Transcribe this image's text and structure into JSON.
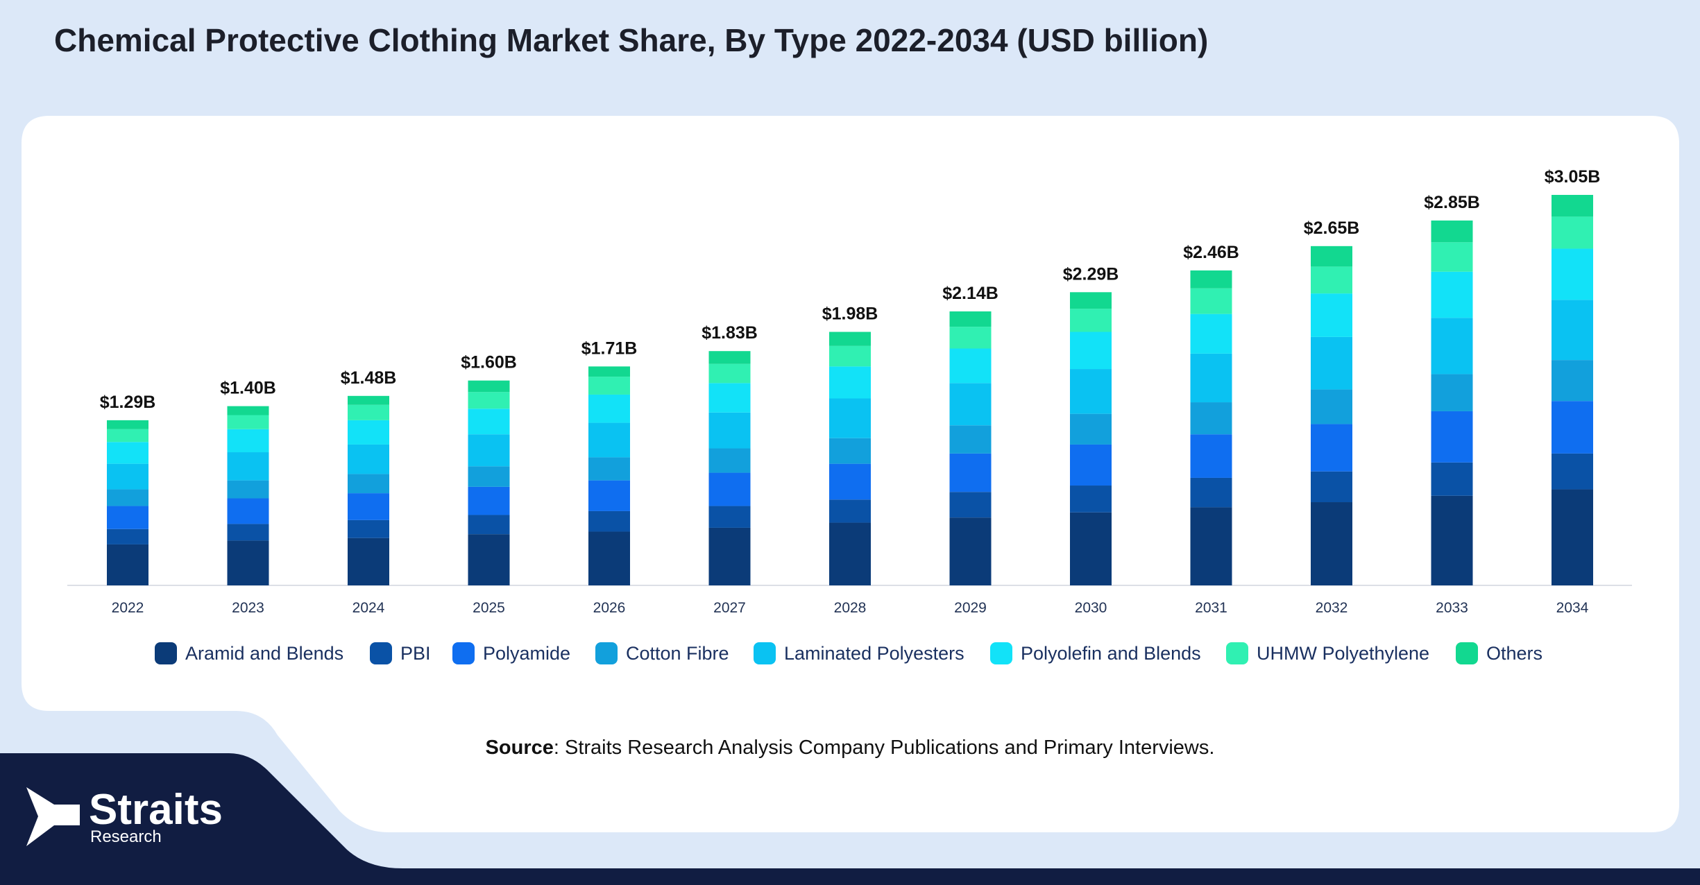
{
  "chart_data": {
    "type": "stacked-bar",
    "title": "Chemical Protective Clothing Market Share, By Type 2022-2034 (USD billion)",
    "categories": [
      "2022",
      "2023",
      "2024",
      "2025",
      "2026",
      "2027",
      "2028",
      "2029",
      "2030",
      "2031",
      "2032",
      "2033",
      "2034"
    ],
    "series": [
      {
        "name": "Aramid and Blends",
        "color": "#0b3b78",
        "values": [
          0.32,
          0.35,
          0.37,
          0.4,
          0.42,
          0.45,
          0.49,
          0.53,
          0.57,
          0.61,
          0.65,
          0.7,
          0.75
        ]
      },
      {
        "name": "PBI",
        "color": "#0a52a6",
        "values": [
          0.12,
          0.13,
          0.14,
          0.15,
          0.16,
          0.17,
          0.18,
          0.2,
          0.21,
          0.23,
          0.24,
          0.26,
          0.28
        ]
      },
      {
        "name": "Polyamide",
        "color": "#0f6ef0",
        "values": [
          0.18,
          0.2,
          0.21,
          0.22,
          0.24,
          0.26,
          0.28,
          0.3,
          0.32,
          0.34,
          0.37,
          0.4,
          0.41
        ]
      },
      {
        "name": "Cotton Fibre",
        "color": "#12a0dc",
        "values": [
          0.13,
          0.14,
          0.15,
          0.16,
          0.18,
          0.19,
          0.2,
          0.22,
          0.24,
          0.25,
          0.27,
          0.29,
          0.32
        ]
      },
      {
        "name": "Laminated Polyesters",
        "color": "#0ac2f2",
        "values": [
          0.2,
          0.22,
          0.23,
          0.25,
          0.27,
          0.28,
          0.31,
          0.33,
          0.35,
          0.38,
          0.41,
          0.44,
          0.47
        ]
      },
      {
        "name": "Polyolefin and Blends",
        "color": "#12e2f8",
        "values": [
          0.17,
          0.18,
          0.19,
          0.2,
          0.22,
          0.23,
          0.25,
          0.27,
          0.29,
          0.31,
          0.34,
          0.36,
          0.4
        ]
      },
      {
        "name": "UHMW Polyethylene",
        "color": "#30f0b2",
        "values": [
          0.1,
          0.11,
          0.12,
          0.13,
          0.14,
          0.15,
          0.16,
          0.17,
          0.18,
          0.2,
          0.21,
          0.23,
          0.25
        ]
      },
      {
        "name": "Others",
        "color": "#12d890",
        "values": [
          0.07,
          0.07,
          0.07,
          0.09,
          0.08,
          0.1,
          0.11,
          0.12,
          0.13,
          0.14,
          0.16,
          0.17,
          0.17
        ]
      }
    ],
    "totals": {
      "values": [
        1.29,
        1.4,
        1.48,
        1.6,
        1.71,
        1.83,
        1.98,
        2.14,
        2.29,
        2.46,
        2.65,
        2.85,
        3.05
      ],
      "value_labels": [
        "$1.29B",
        "$1.40B",
        "$1.48B",
        "$1.60B",
        "$1.71B",
        "$1.83B",
        "$1.98B",
        "$2.14B",
        "$2.29B",
        "$2.46B",
        "$2.65B",
        "$2.85B",
        "$3.05B"
      ]
    },
    "legend": "bottom"
  },
  "source": {
    "label": "Source",
    "text": ": Straits Research Analysis Company Publications and Primary Interviews."
  },
  "logo": {
    "name": "Straits",
    "sub": "Research"
  }
}
